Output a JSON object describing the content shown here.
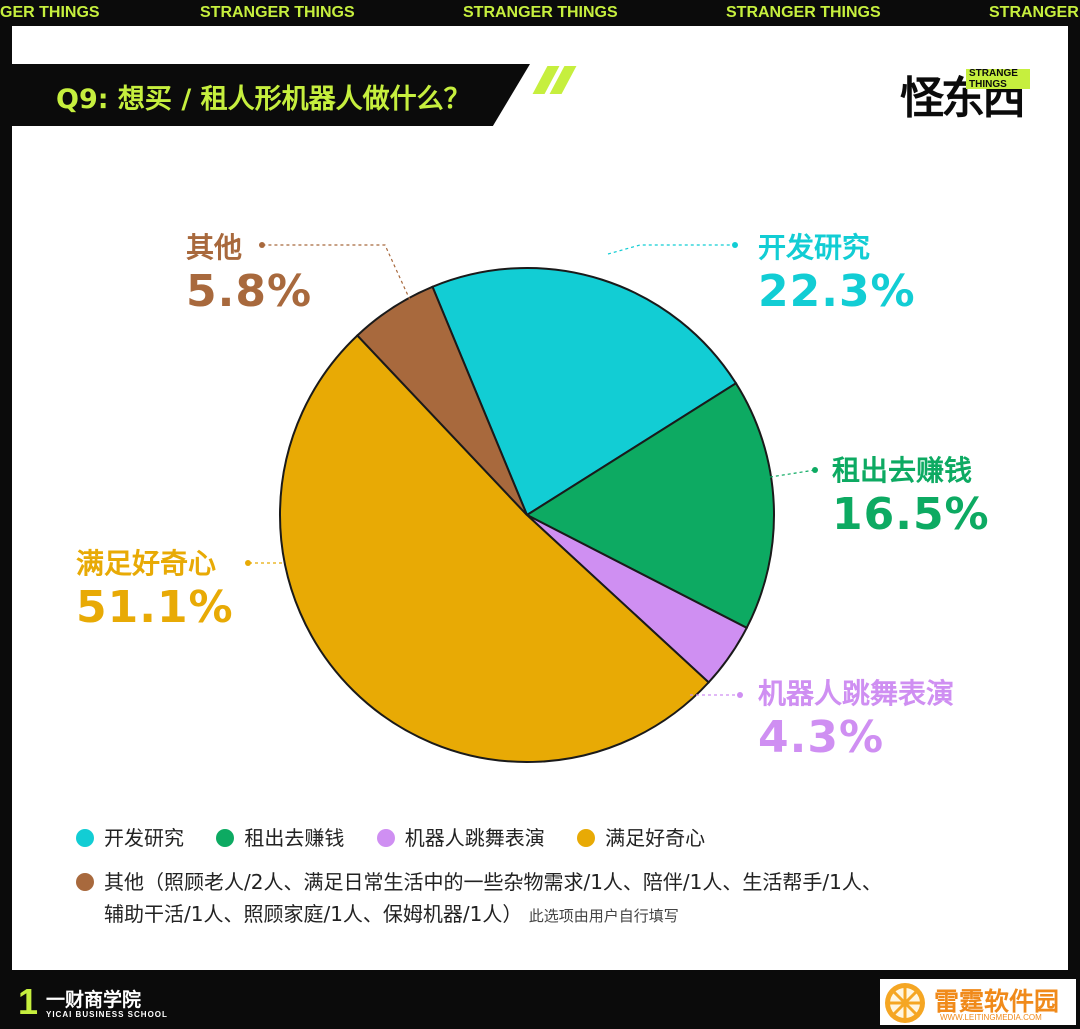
{
  "ticker": [
    "GER THINGS",
    "STRANGER THINGS",
    "STRANGER THINGS",
    "STRANGER THINGS",
    "STRANGER"
  ],
  "question": "Q9: 想买 / 租人形机器人做什么？",
  "logo": {
    "cn": "怪东西",
    "en": "STRANGE\nTHINGS"
  },
  "chart_data": {
    "type": "pie",
    "unit": "%",
    "slices": [
      {
        "label": "开发研究",
        "value": 22.3,
        "display": "22.3%",
        "color": "#12cdd4"
      },
      {
        "label": "租出去赚钱",
        "value": 16.5,
        "display": "16.5%",
        "color": "#0daa62"
      },
      {
        "label": "机器人跳舞表演",
        "value": 4.3,
        "display": "4.3%",
        "color": "#cf8ff2"
      },
      {
        "label": "满足好奇心",
        "value": 51.1,
        "display": "51.1%",
        "color": "#e8aa05"
      },
      {
        "label": "其他",
        "value": 5.8,
        "display": "5.8%",
        "color": "#a8693d"
      }
    ]
  },
  "legend": {
    "items": [
      {
        "label": "开发研究",
        "color": "#12cdd4"
      },
      {
        "label": "租出去赚钱",
        "color": "#0daa62"
      },
      {
        "label": "机器人跳舞表演",
        "color": "#cf8ff2"
      },
      {
        "label": "满足好奇心",
        "color": "#e8aa05"
      }
    ],
    "other_label": "其他（照顾老人/2人、满足日常生活中的一些杂物需求/1人、陪伴/1人、生活帮手/1人、",
    "other_label_2": "辅助干活/1人、照顾家庭/1人、保姆机器/1人）",
    "other_note": "此选项由用户自行填写",
    "other_color": "#a8693d"
  },
  "footer": {
    "brand_num": "1",
    "brand_cn": "一财商学院",
    "brand_en": "YICAI BUSINESS SCHOOL"
  },
  "watermark": {
    "cn": "雷霆软件园",
    "en": "WWW.LEITINGMEDIA.COM"
  }
}
